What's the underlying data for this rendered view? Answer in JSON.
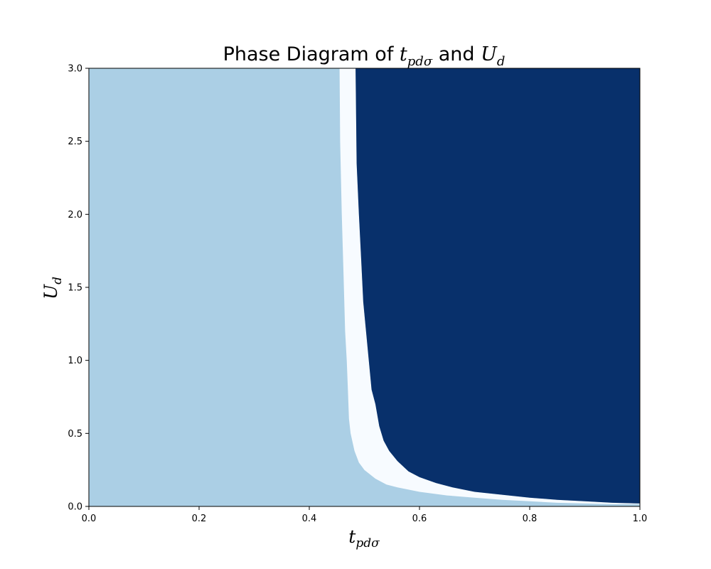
{
  "chart_data": {
    "type": "heatmap",
    "title": {
      "prefix": "Phase Diagram of ",
      "t_base": "t",
      "t_sub": "pdσ",
      "middle": " and ",
      "u_base": "U",
      "u_sub": "d"
    },
    "xlabel": {
      "base": "t",
      "sub": "pdσ"
    },
    "ylabel": {
      "base": "U",
      "sub": "d"
    },
    "xlim": [
      0.0,
      1.0
    ],
    "ylim": [
      0.0,
      3.0
    ],
    "xticks": [
      "0.0",
      "0.2",
      "0.4",
      "0.6",
      "0.8",
      "1.0"
    ],
    "yticks": [
      "0.0",
      "0.5",
      "1.0",
      "1.5",
      "2.0",
      "2.5",
      "3.0"
    ],
    "colormap": "Blues",
    "grid": false,
    "regions": [
      {
        "name": "low",
        "color": "#abcfe5"
      },
      {
        "name": "boundary",
        "color": "#f7fbff"
      },
      {
        "name": "high",
        "color": "#08306b"
      }
    ],
    "boundaries": {
      "left_edge_t": [
        [
          0.455,
          3.0
        ],
        [
          0.456,
          2.5
        ],
        [
          0.459,
          2.0
        ],
        [
          0.462,
          1.6
        ],
        [
          0.465,
          1.2
        ],
        [
          0.468,
          1.0
        ],
        [
          0.47,
          0.8
        ],
        [
          0.472,
          0.6
        ],
        [
          0.475,
          0.5
        ],
        [
          0.478,
          0.45
        ],
        [
          0.482,
          0.38
        ],
        [
          0.49,
          0.3
        ],
        [
          0.5,
          0.25
        ],
        [
          0.52,
          0.19
        ],
        [
          0.54,
          0.15
        ],
        [
          0.56,
          0.13
        ],
        [
          0.6,
          0.1
        ],
        [
          0.65,
          0.075
        ],
        [
          0.7,
          0.06
        ],
        [
          0.75,
          0.045
        ],
        [
          0.8,
          0.035
        ],
        [
          0.85,
          0.025
        ],
        [
          0.9,
          0.02
        ],
        [
          0.95,
          0.015
        ],
        [
          1.0,
          0.015
        ]
      ],
      "right_edge_t": [
        [
          0.484,
          3.0
        ],
        [
          0.486,
          2.35
        ],
        [
          0.49,
          2.0
        ],
        [
          0.494,
          1.7
        ],
        [
          0.498,
          1.4
        ],
        [
          0.503,
          1.2
        ],
        [
          0.508,
          1.0
        ],
        [
          0.513,
          0.8
        ],
        [
          0.52,
          0.7
        ],
        [
          0.527,
          0.55
        ],
        [
          0.535,
          0.45
        ],
        [
          0.545,
          0.38
        ],
        [
          0.56,
          0.31
        ],
        [
          0.58,
          0.24
        ],
        [
          0.6,
          0.2
        ],
        [
          0.63,
          0.16
        ],
        [
          0.66,
          0.13
        ],
        [
          0.7,
          0.1
        ],
        [
          0.75,
          0.08
        ],
        [
          0.8,
          0.06
        ],
        [
          0.85,
          0.045
        ],
        [
          0.9,
          0.035
        ],
        [
          0.95,
          0.025
        ],
        [
          1.0,
          0.02
        ]
      ]
    }
  }
}
